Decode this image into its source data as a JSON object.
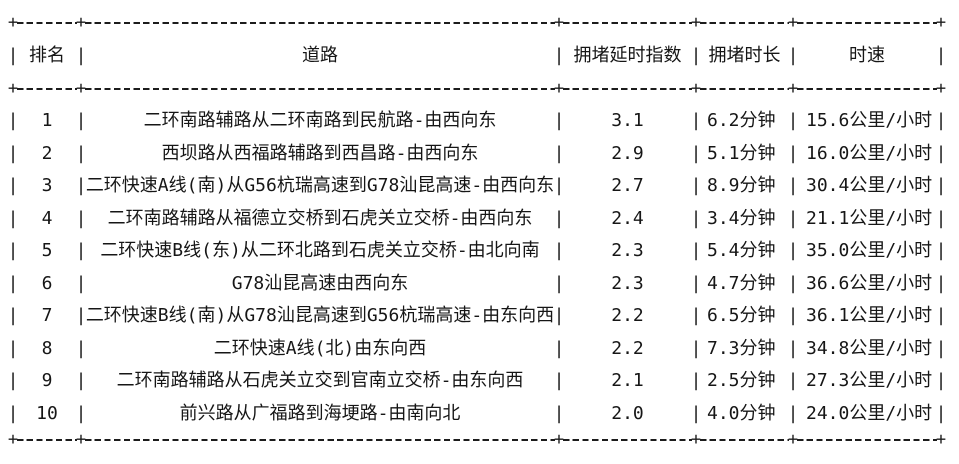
{
  "page": {
    "background": "#ffffff",
    "text_color": "#161616"
  },
  "table": {
    "glyphs": {
      "vertical": "|",
      "corner": "+"
    },
    "columns": [
      "排名",
      "道路",
      "拥堵延时指数",
      "拥堵时长",
      "时速"
    ],
    "rows": [
      [
        "1",
        "二环南路辅路从二环南路到民航路-由西向东",
        "3.1",
        "6.2分钟",
        "15.6公里/小时"
      ],
      [
        "2",
        "西坝路从西福路辅路到西昌路-由西向东",
        "2.9",
        "5.1分钟",
        "16.0公里/小时"
      ],
      [
        "3",
        "二环快速A线(南)从G56杭瑞高速到G78汕昆高速-由西向东",
        "2.7",
        "8.9分钟",
        "30.4公里/小时"
      ],
      [
        "4",
        "二环南路辅路从福德立交桥到石虎关立交桥-由西向东",
        "2.4",
        "3.4分钟",
        "21.1公里/小时"
      ],
      [
        "5",
        "二环快速B线(东)从二环北路到石虎关立交桥-由北向南",
        "2.3",
        "5.4分钟",
        "35.0公里/小时"
      ],
      [
        "6",
        "G78汕昆高速由西向东",
        "2.3",
        "4.7分钟",
        "36.6公里/小时"
      ],
      [
        "7",
        "二环快速B线(南)从G78汕昆高速到G56杭瑞高速-由东向西",
        "2.2",
        "6.5分钟",
        "36.1公里/小时"
      ],
      [
        "8",
        "二环快速A线(北)由东向西",
        "2.2",
        "7.3分钟",
        "34.8公里/小时"
      ],
      [
        "9",
        "二环南路辅路从石虎关立交到官南立交桥-由东向西",
        "2.1",
        "2.5分钟",
        "27.3公里/小时"
      ],
      [
        "10",
        "前兴路从广福路到海埂路-由南向北",
        "2.0",
        "4.0分钟",
        "24.0公里/小时"
      ]
    ]
  }
}
